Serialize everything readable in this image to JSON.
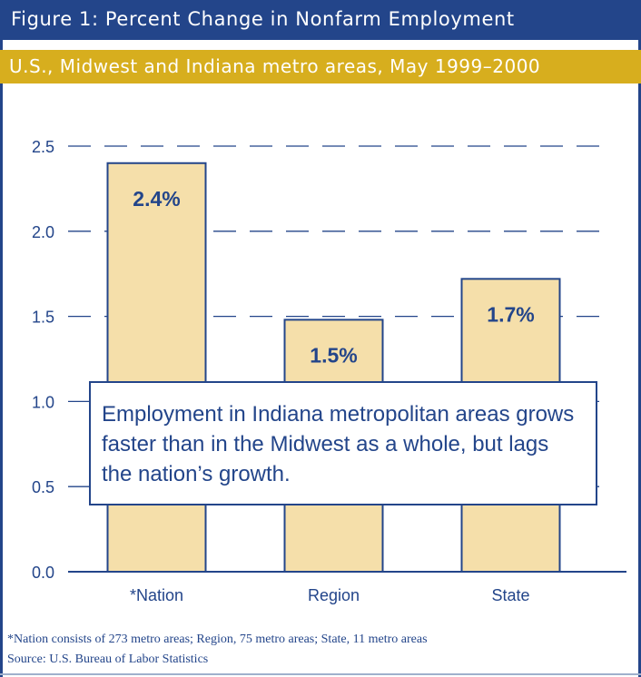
{
  "header": {
    "title": "Figure 1: Percent Change in Nonfarm Employment",
    "subtitle": "U.S., Midwest and Indiana metro areas, May 1999–2000"
  },
  "chart_data": {
    "type": "bar",
    "categories": [
      "*Nation",
      "Region",
      "State"
    ],
    "values": [
      2.4,
      1.48,
      1.72
    ],
    "data_labels": [
      "2.4%",
      "1.5%",
      "1.7%"
    ],
    "yticks": [
      "0.0",
      "0.5",
      "1.0",
      "1.5",
      "2.0",
      "2.5"
    ],
    "ylim": [
      0,
      2.5
    ],
    "grid": true,
    "bar_color": "#f5dfaa",
    "axis_color": "#23458a"
  },
  "callout": {
    "text": "Employment in Indiana metropolitan areas grows faster than in the Midwest as a whole, but lags the nation’s growth."
  },
  "footer": {
    "footnote": "*Nation consists of 273 metro areas; Region, 75 metro areas; State, 11 metro areas",
    "source": "Source: U.S. Bureau of Labor Statistics"
  },
  "colors": {
    "brand_blue": "#23458a",
    "brand_gold": "#d7ae1e"
  }
}
